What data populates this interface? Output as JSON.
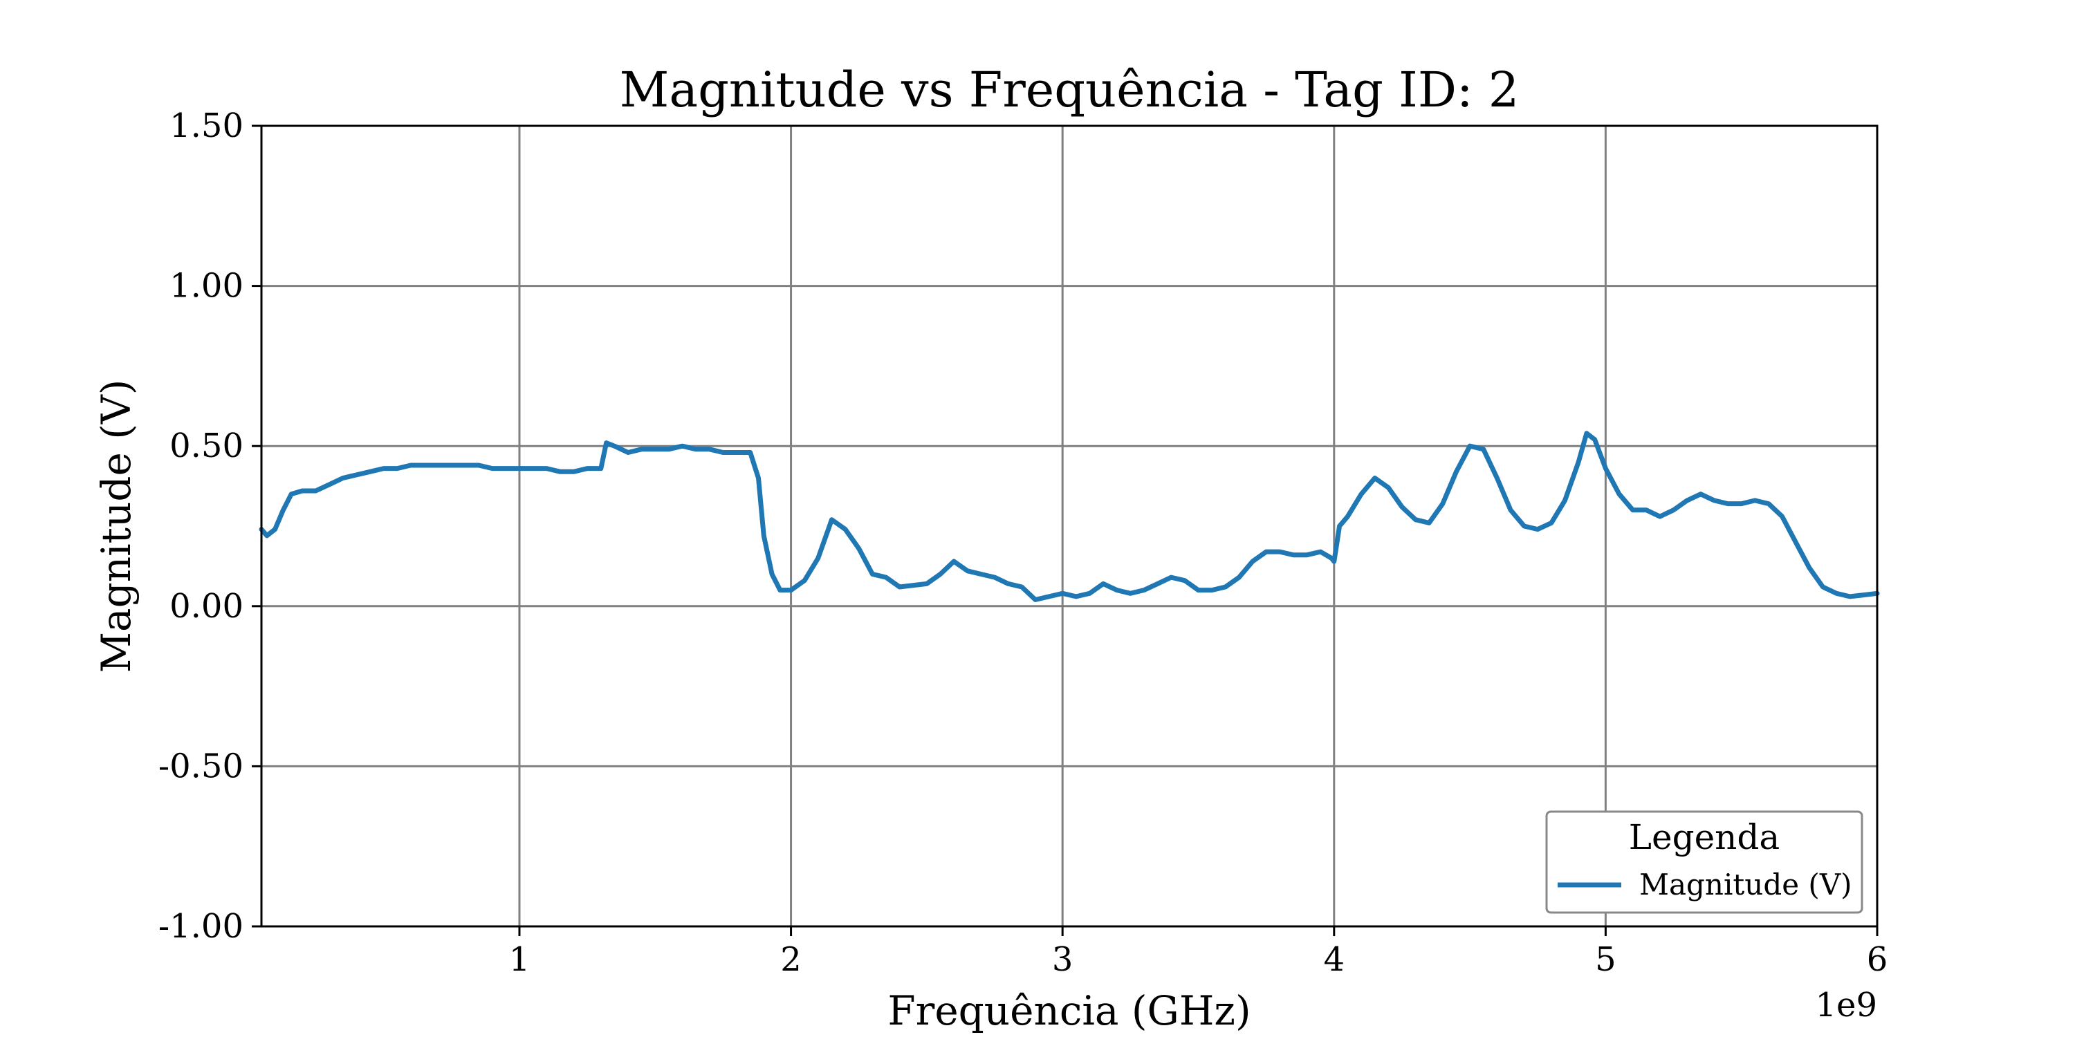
{
  "chart_data": {
    "type": "line",
    "title": "Magnitude vs Frequência - Tag ID: 2",
    "xlabel": "Frequência (GHz)",
    "ylabel": "Magnitude (V)",
    "x_offset_text": "1e9",
    "xlim": [
      0.05,
      6.0
    ],
    "ylim": [
      -1.0,
      1.5
    ],
    "x_ticks": [
      1,
      2,
      3,
      4,
      5,
      6
    ],
    "x_tick_labels": [
      "1",
      "2",
      "3",
      "4",
      "5",
      "6"
    ],
    "y_ticks": [
      -1.0,
      -0.5,
      0.0,
      0.5,
      1.0,
      1.5
    ],
    "y_tick_labels": [
      "-1.00",
      "-0.50",
      "0.00",
      "0.50",
      "1.00",
      "1.50"
    ],
    "grid": true,
    "legend": {
      "title": "Legenda",
      "placement": "lower-right"
    },
    "series": [
      {
        "name": "Magnitude (V)",
        "color": "#1f77b4",
        "points": [
          [
            0.05,
            0.24
          ],
          [
            0.07,
            0.22
          ],
          [
            0.1,
            0.24
          ],
          [
            0.13,
            0.3
          ],
          [
            0.16,
            0.35
          ],
          [
            0.2,
            0.36
          ],
          [
            0.25,
            0.36
          ],
          [
            0.3,
            0.38
          ],
          [
            0.35,
            0.4
          ],
          [
            0.4,
            0.41
          ],
          [
            0.45,
            0.42
          ],
          [
            0.5,
            0.43
          ],
          [
            0.55,
            0.43
          ],
          [
            0.6,
            0.44
          ],
          [
            0.65,
            0.44
          ],
          [
            0.7,
            0.44
          ],
          [
            0.75,
            0.44
          ],
          [
            0.8,
            0.44
          ],
          [
            0.85,
            0.44
          ],
          [
            0.9,
            0.43
          ],
          [
            0.95,
            0.43
          ],
          [
            1.0,
            0.43
          ],
          [
            1.05,
            0.43
          ],
          [
            1.1,
            0.43
          ],
          [
            1.15,
            0.42
          ],
          [
            1.2,
            0.42
          ],
          [
            1.25,
            0.43
          ],
          [
            1.3,
            0.43
          ],
          [
            1.32,
            0.51
          ],
          [
            1.35,
            0.5
          ],
          [
            1.4,
            0.48
          ],
          [
            1.45,
            0.49
          ],
          [
            1.5,
            0.49
          ],
          [
            1.55,
            0.49
          ],
          [
            1.6,
            0.5
          ],
          [
            1.65,
            0.49
          ],
          [
            1.7,
            0.49
          ],
          [
            1.75,
            0.48
          ],
          [
            1.8,
            0.48
          ],
          [
            1.85,
            0.48
          ],
          [
            1.88,
            0.4
          ],
          [
            1.9,
            0.22
          ],
          [
            1.93,
            0.1
          ],
          [
            1.96,
            0.05
          ],
          [
            2.0,
            0.05
          ],
          [
            2.05,
            0.08
          ],
          [
            2.1,
            0.15
          ],
          [
            2.15,
            0.27
          ],
          [
            2.2,
            0.24
          ],
          [
            2.25,
            0.18
          ],
          [
            2.3,
            0.1
          ],
          [
            2.35,
            0.09
          ],
          [
            2.4,
            0.06
          ],
          [
            2.5,
            0.07
          ],
          [
            2.55,
            0.1
          ],
          [
            2.6,
            0.14
          ],
          [
            2.65,
            0.11
          ],
          [
            2.7,
            0.1
          ],
          [
            2.75,
            0.09
          ],
          [
            2.8,
            0.07
          ],
          [
            2.85,
            0.06
          ],
          [
            2.9,
            0.02
          ],
          [
            2.95,
            0.03
          ],
          [
            3.0,
            0.04
          ],
          [
            3.05,
            0.03
          ],
          [
            3.1,
            0.04
          ],
          [
            3.15,
            0.07
          ],
          [
            3.2,
            0.05
          ],
          [
            3.25,
            0.04
          ],
          [
            3.3,
            0.05
          ],
          [
            3.35,
            0.07
          ],
          [
            3.4,
            0.09
          ],
          [
            3.45,
            0.08
          ],
          [
            3.5,
            0.05
          ],
          [
            3.55,
            0.05
          ],
          [
            3.6,
            0.06
          ],
          [
            3.65,
            0.09
          ],
          [
            3.7,
            0.14
          ],
          [
            3.75,
            0.17
          ],
          [
            3.8,
            0.17
          ],
          [
            3.85,
            0.16
          ],
          [
            3.9,
            0.16
          ],
          [
            3.95,
            0.17
          ],
          [
            3.99,
            0.15
          ],
          [
            4.0,
            0.14
          ],
          [
            4.02,
            0.25
          ],
          [
            4.05,
            0.28
          ],
          [
            4.1,
            0.35
          ],
          [
            4.15,
            0.4
          ],
          [
            4.2,
            0.37
          ],
          [
            4.25,
            0.31
          ],
          [
            4.3,
            0.27
          ],
          [
            4.35,
            0.26
          ],
          [
            4.4,
            0.32
          ],
          [
            4.45,
            0.42
          ],
          [
            4.5,
            0.5
          ],
          [
            4.55,
            0.49
          ],
          [
            4.6,
            0.4
          ],
          [
            4.65,
            0.3
          ],
          [
            4.7,
            0.25
          ],
          [
            4.75,
            0.24
          ],
          [
            4.8,
            0.26
          ],
          [
            4.85,
            0.33
          ],
          [
            4.9,
            0.45
          ],
          [
            4.93,
            0.54
          ],
          [
            4.96,
            0.52
          ],
          [
            5.0,
            0.43
          ],
          [
            5.05,
            0.35
          ],
          [
            5.1,
            0.3
          ],
          [
            5.15,
            0.3
          ],
          [
            5.2,
            0.28
          ],
          [
            5.25,
            0.3
          ],
          [
            5.3,
            0.33
          ],
          [
            5.35,
            0.35
          ],
          [
            5.4,
            0.33
          ],
          [
            5.45,
            0.32
          ],
          [
            5.5,
            0.32
          ],
          [
            5.55,
            0.33
          ],
          [
            5.6,
            0.32
          ],
          [
            5.65,
            0.28
          ],
          [
            5.7,
            0.2
          ],
          [
            5.75,
            0.12
          ],
          [
            5.8,
            0.06
          ],
          [
            5.85,
            0.04
          ],
          [
            5.9,
            0.03
          ],
          [
            5.95,
            0.035
          ],
          [
            6.0,
            0.04
          ]
        ]
      }
    ]
  }
}
